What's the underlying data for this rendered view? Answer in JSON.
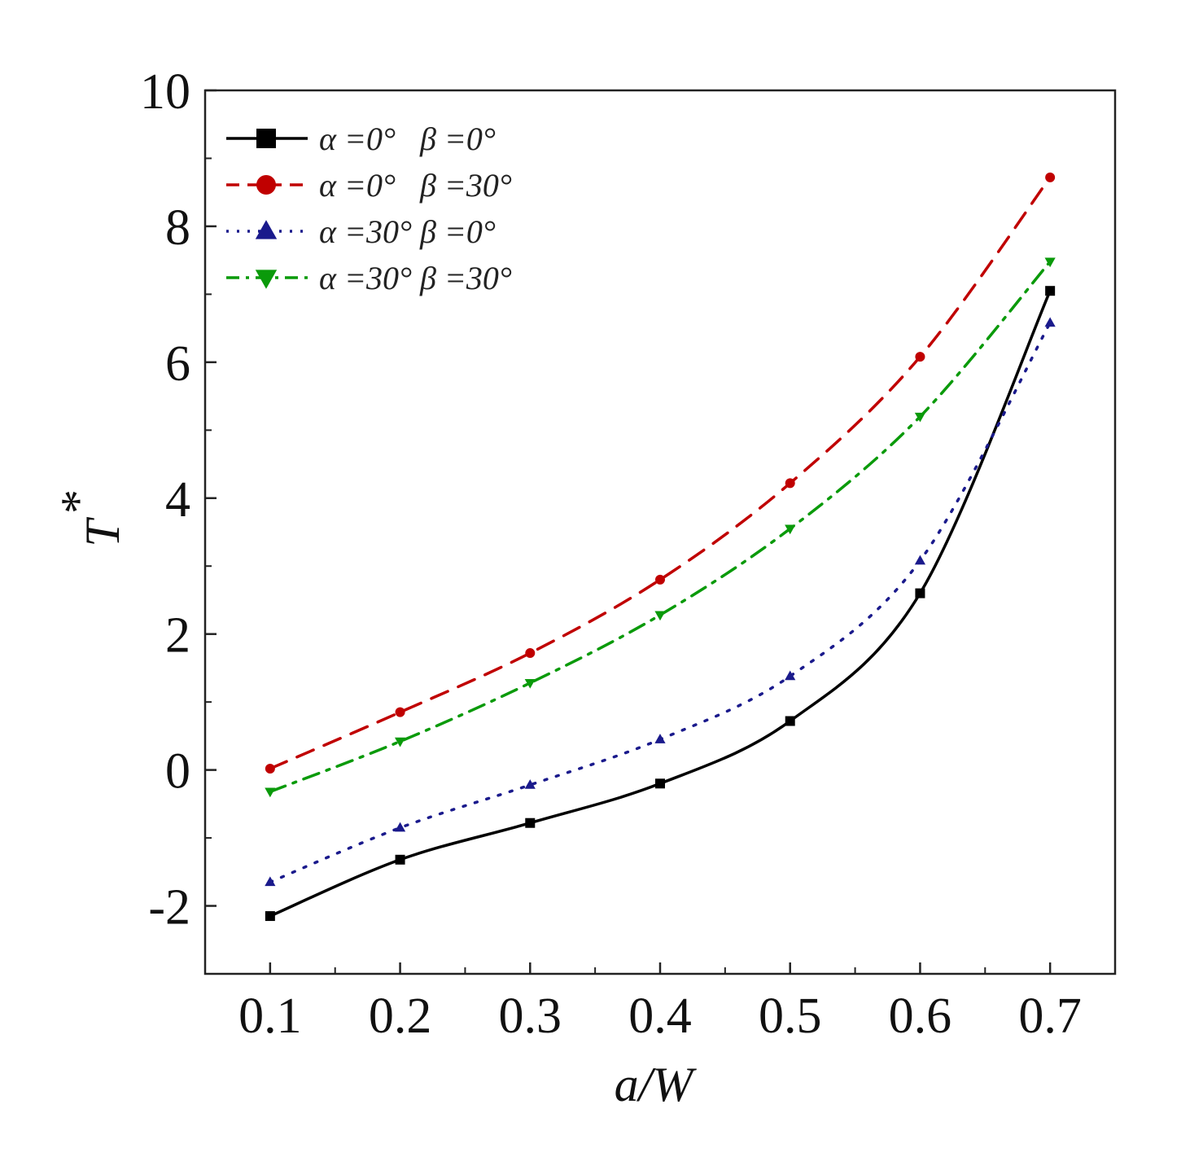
{
  "chart_data": {
    "type": "line",
    "xlabel": "a/W",
    "ylabel": "T",
    "ylabel_superscript": "*",
    "xlim": [
      0.05,
      0.75
    ],
    "ylim": [
      -3,
      10
    ],
    "xticks": [
      "0.1",
      "0.2",
      "0.3",
      "0.4",
      "0.5",
      "0.6",
      "0.7"
    ],
    "yticks": [
      "-2",
      "0",
      "2",
      "4",
      "6",
      "8",
      "10"
    ],
    "x": [
      0.1,
      0.2,
      0.3,
      0.4,
      0.5,
      0.6,
      0.7
    ],
    "series": [
      {
        "name": "α =0°   β =0°",
        "color": "#000000",
        "dash": "solid",
        "marker": "square",
        "values": [
          -2.15,
          -1.32,
          -0.78,
          -0.2,
          0.72,
          2.6,
          7.05
        ]
      },
      {
        "name": "α =0°   β =30°",
        "color": "#c00000",
        "dash": "dash",
        "marker": "circle",
        "values": [
          0.02,
          0.85,
          1.72,
          2.8,
          4.22,
          6.08,
          8.72
        ]
      },
      {
        "name": "α =30° β =0°",
        "color": "#1a1a8c",
        "dash": "dot",
        "marker": "triangle-up",
        "values": [
          -1.65,
          -0.85,
          -0.22,
          0.45,
          1.38,
          3.08,
          6.58
        ]
      },
      {
        "name": "α =30° β =30°",
        "color": "#0a9a0a",
        "dash": "dashdot",
        "marker": "triangle-down",
        "values": [
          -0.32,
          0.42,
          1.28,
          2.28,
          3.55,
          5.2,
          7.48
        ]
      }
    ],
    "legend_position": "top-left",
    "grid": false
  }
}
